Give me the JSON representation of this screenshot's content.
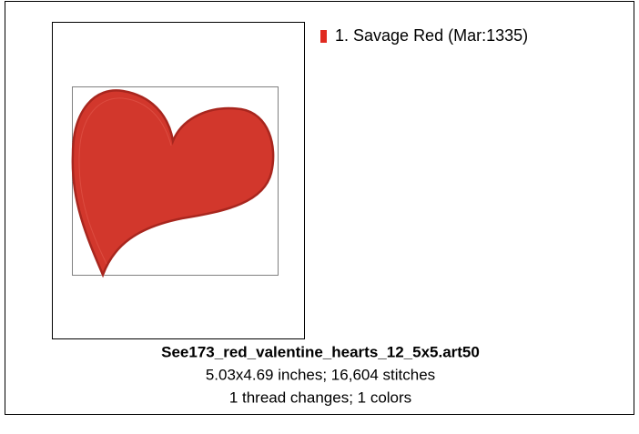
{
  "design": {
    "file_name": "See173_red_valentine_hearts_12_5x5.art50",
    "details": "5.03x4.69 inches; 16,604 stitches",
    "summary": "1 thread changes; 1 colors",
    "threads": [
      {
        "label": "1.  Savage Red (Mar:1335)",
        "color": "#e02a20"
      }
    ]
  }
}
